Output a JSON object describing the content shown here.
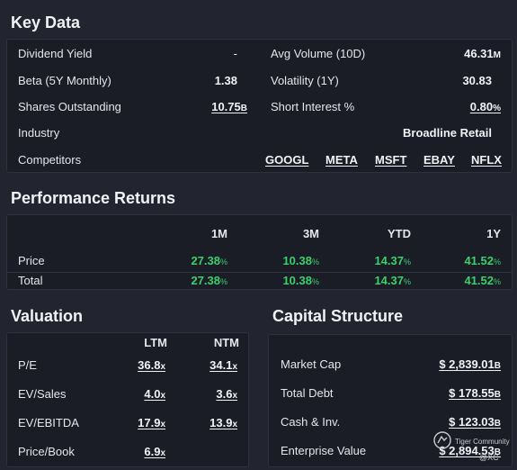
{
  "key_data": {
    "title": "Key Data",
    "dividend_yield": {
      "label": "Dividend Yield",
      "value": "-"
    },
    "beta": {
      "label": "Beta (5Y Monthly)",
      "value": "1.38"
    },
    "shares": {
      "label": "Shares Outstanding",
      "value": "10.75",
      "suffix": "B"
    },
    "industry": {
      "label": "Industry",
      "value": "Broadline Retail"
    },
    "competitors": {
      "label": "Competitors",
      "items": [
        "GOOGL",
        "META",
        "MSFT",
        "EBAY",
        "NFLX"
      ]
    },
    "avg_volume": {
      "label": "Avg Volume (10D)",
      "value": "46.31",
      "suffix": "M"
    },
    "volatility": {
      "label": "Volatility (1Y)",
      "value": "30.83"
    },
    "short_interest": {
      "label": "Short Interest %",
      "value": "0.80",
      "suffix": "%"
    }
  },
  "performance": {
    "title": "Performance Returns",
    "headers": [
      "1M",
      "3M",
      "YTD",
      "1Y"
    ],
    "rows": [
      {
        "label": "Price",
        "values": [
          "27.38",
          "10.38",
          "14.37",
          "41.52"
        ]
      },
      {
        "label": "Total",
        "values": [
          "27.38",
          "10.38",
          "14.37",
          "41.52"
        ]
      }
    ],
    "pct": "%"
  },
  "valuation": {
    "title": "Valuation",
    "headers": [
      "LTM",
      "NTM"
    ],
    "rows": [
      {
        "label": "P/E",
        "ltm": "36.8",
        "ntm": "34.1",
        "suffix": "x"
      },
      {
        "label": "EV/Sales",
        "ltm": "4.0",
        "ntm": "3.6",
        "suffix": "x"
      },
      {
        "label": "EV/EBITDA",
        "ltm": "17.9",
        "ntm": "13.9",
        "suffix": "x"
      },
      {
        "label": "Price/Book",
        "ltm": "6.9",
        "ntm": "",
        "suffix": "x"
      }
    ]
  },
  "capital": {
    "title": "Capital Structure",
    "rows": [
      {
        "label": "Market Cap",
        "value": "$ 2,839.01",
        "suffix": "B"
      },
      {
        "label": "Total Debt",
        "value": "$ 178.55",
        "suffix": "B"
      },
      {
        "label": "Cash & Inv.",
        "value": "$ 123.03",
        "suffix": "B"
      },
      {
        "label": "Enterprise Value",
        "value": "$ 2,894.53",
        "suffix": "B"
      }
    ]
  },
  "watermark": {
    "line1": "Tiger Community",
    "line2": "@XC"
  },
  "colors": {
    "background": "#222530",
    "card": "#1a1d26",
    "positive": "#3ccf6b",
    "text": "#e4e6ec"
  }
}
